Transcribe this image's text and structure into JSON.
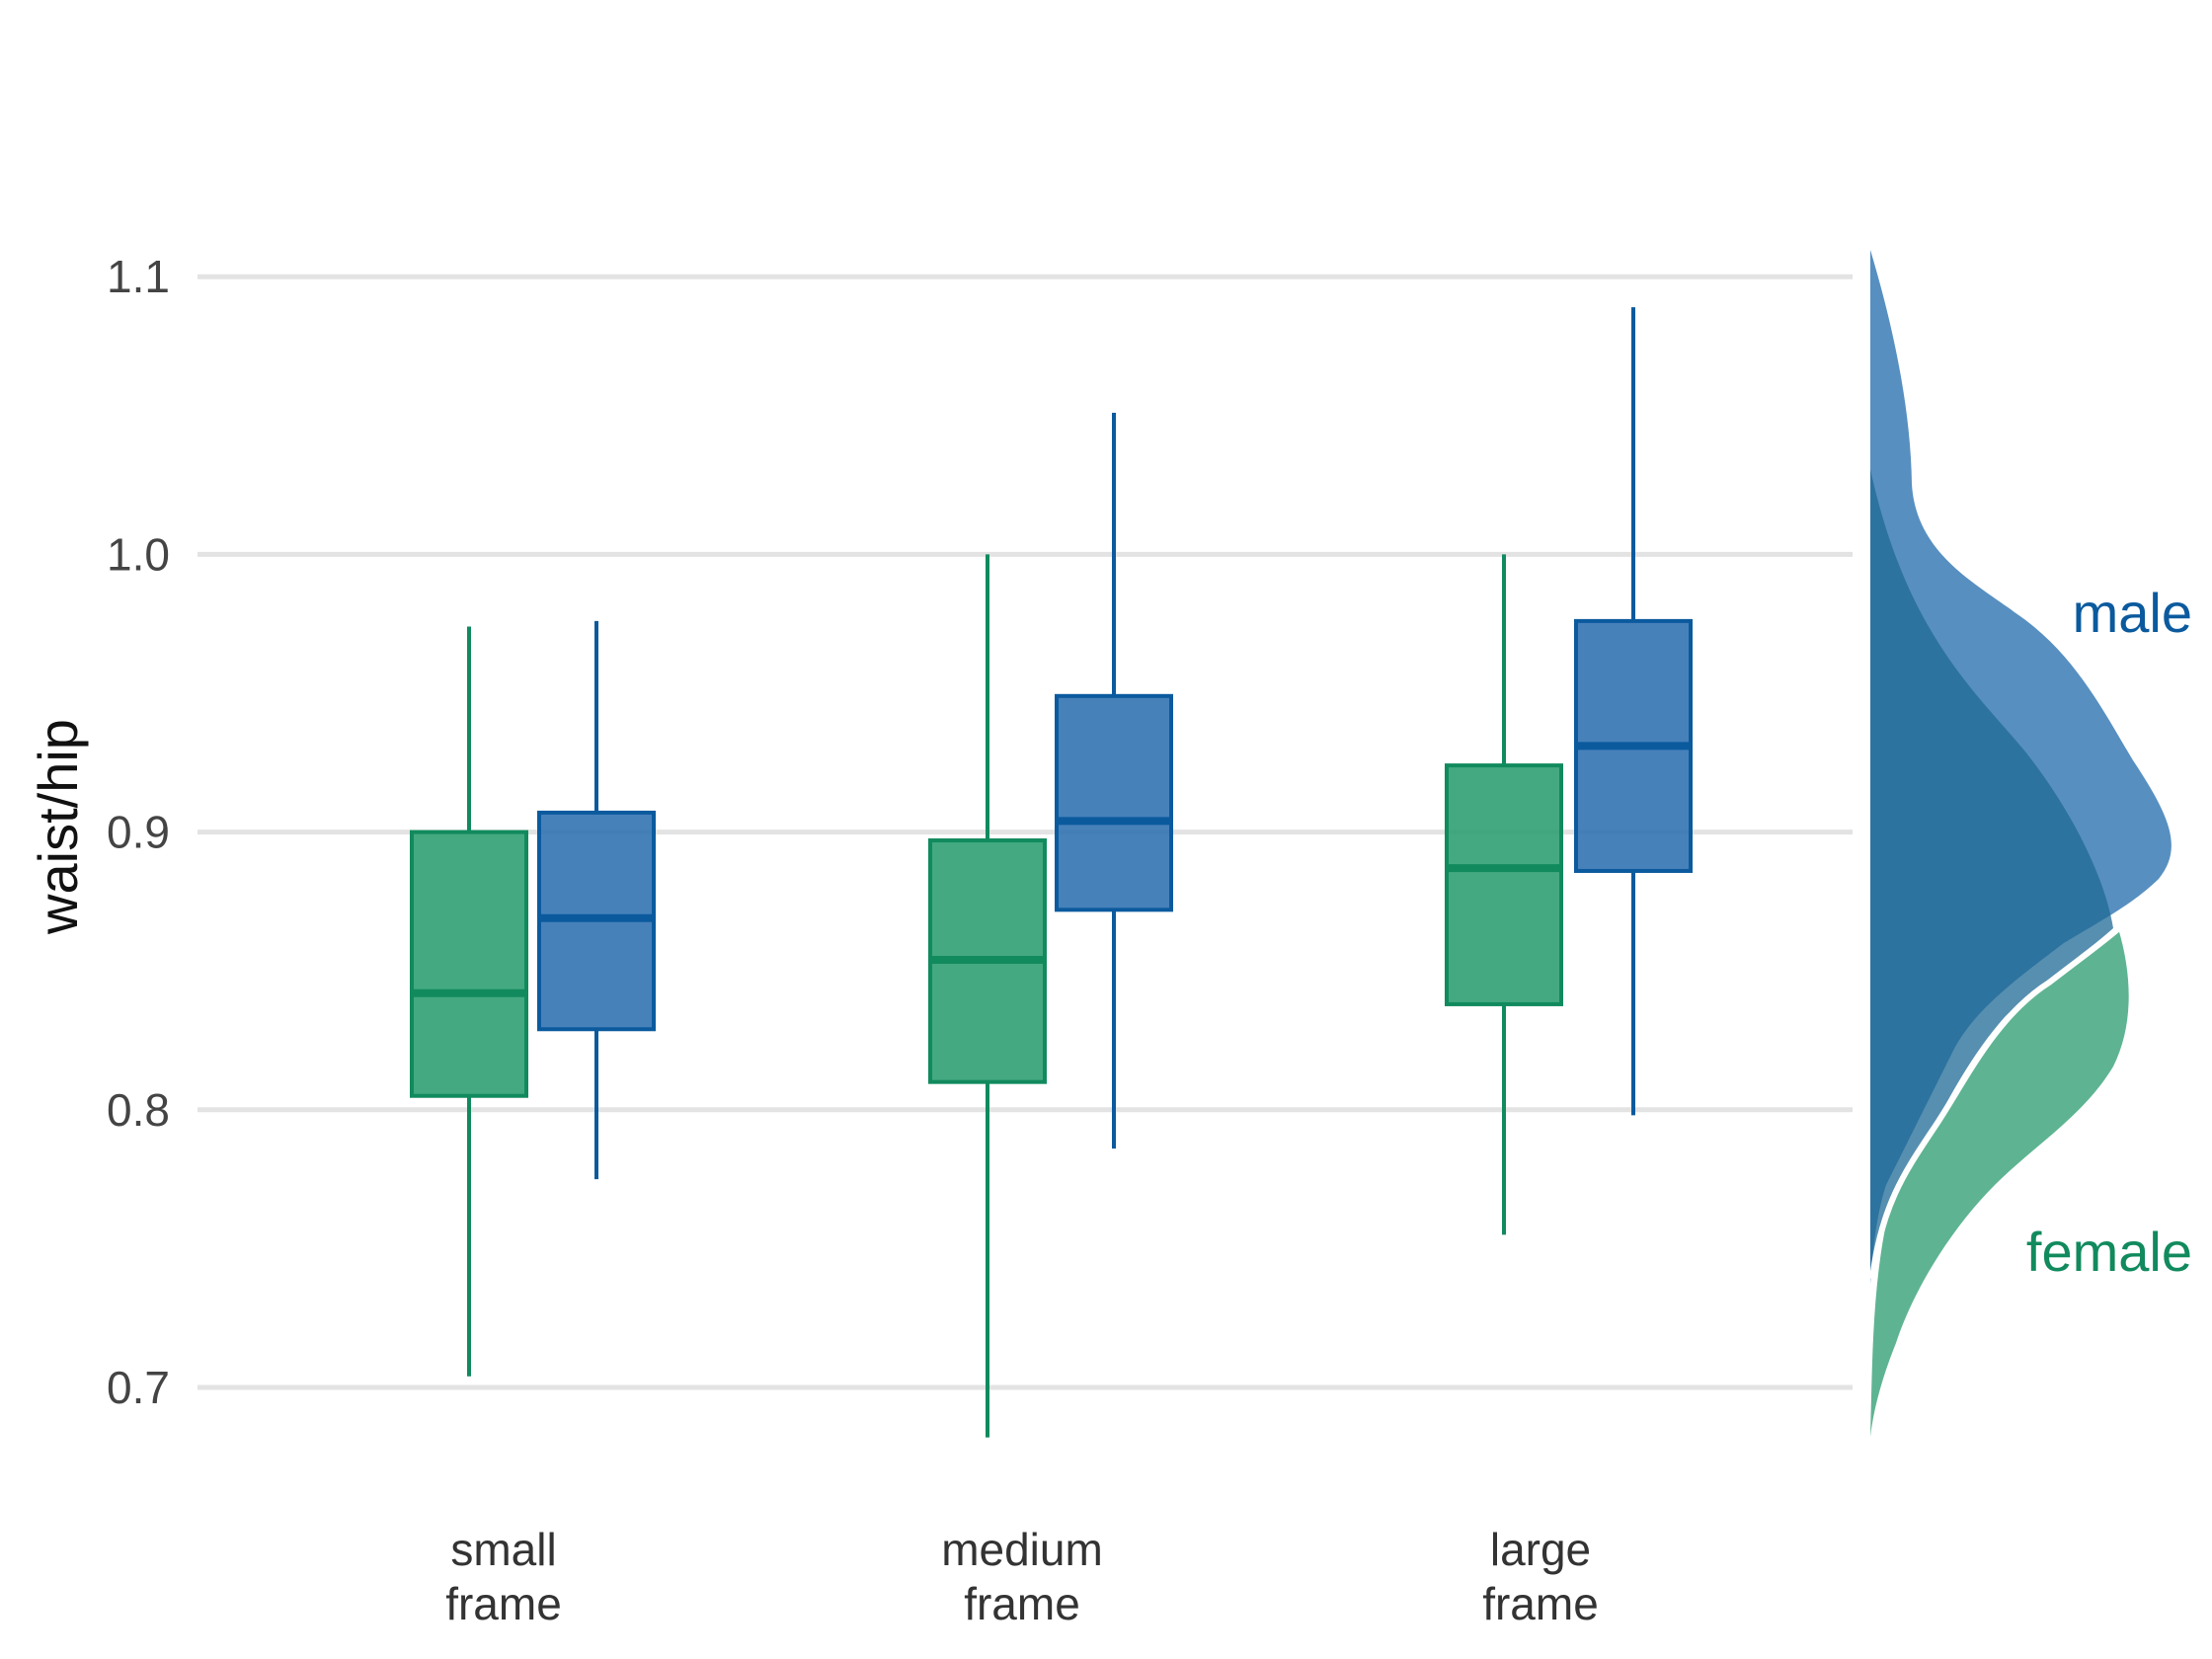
{
  "chart_data": {
    "type": "boxplot",
    "ylabel": "waist/hip",
    "ylim": [
      0.68,
      1.11
    ],
    "y_ticks": [
      "0.7",
      "0.8",
      "0.9",
      "1.0",
      "1.1"
    ],
    "grid": "horizontal",
    "categories": [
      {
        "line1": "small",
        "line2": "frame"
      },
      {
        "line1": "medium",
        "line2": "frame"
      },
      {
        "line1": "large",
        "line2": "frame"
      }
    ],
    "series": [
      {
        "name": "female",
        "color": "#118a5e",
        "fill": "#2a9d6e",
        "boxes": [
          {
            "min": 0.704,
            "q1": 0.805,
            "median": 0.842,
            "q3": 0.9,
            "max": 0.974
          },
          {
            "min": 0.682,
            "q1": 0.81,
            "median": 0.854,
            "q3": 0.897,
            "max": 1.0
          },
          {
            "min": 0.755,
            "q1": 0.838,
            "median": 0.887,
            "q3": 0.924,
            "max": 1.0
          }
        ],
        "density_support": [
          0.683,
          0.867
        ]
      },
      {
        "name": "male",
        "color": "#0b5a9e",
        "fill": "#2d6fb0",
        "boxes": [
          {
            "min": 0.775,
            "q1": 0.829,
            "median": 0.869,
            "q3": 0.907,
            "max": 0.976
          },
          {
            "min": 0.786,
            "q1": 0.872,
            "median": 0.904,
            "q3": 0.949,
            "max": 1.051
          },
          {
            "min": 0.798,
            "q1": 0.886,
            "median": 0.931,
            "q3": 0.976,
            "max": 1.089
          }
        ],
        "density_support": [
          0.74,
          1.11
        ]
      }
    ],
    "legend": "direct labels right of density"
  }
}
